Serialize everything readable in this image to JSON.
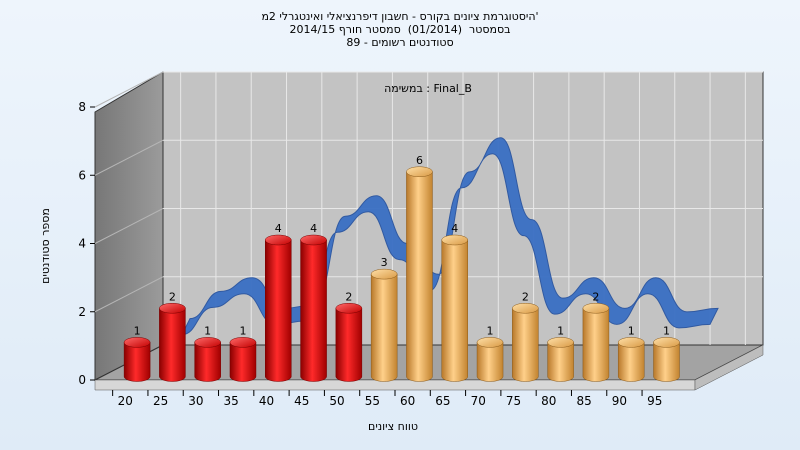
{
  "chart_data": {
    "type": "bar",
    "title_lines": [
      "היסטוגרמת ציונים בקורס - חשבון דיפרנציאלי ואינטגרלי 2מ'",
      "בסמסטר  (01/2014)  סמסטר חורף 2014/15",
      "סטודנטים רשומים - 89"
    ],
    "annotation": "במשימה : Final_B",
    "xlabel": "טווח ציונים",
    "ylabel": "מספר סטודנטים",
    "categories": [
      "20",
      "25",
      "30",
      "35",
      "40",
      "45",
      "50",
      "55",
      "60",
      "65",
      "70",
      "75",
      "80",
      "85",
      "90",
      "95"
    ],
    "values": [
      1,
      2,
      1,
      1,
      4,
      4,
      2,
      3,
      6,
      4,
      1,
      2,
      1,
      2,
      1,
      1
    ],
    "yticks": [
      "0",
      "2",
      "4",
      "6",
      "8"
    ],
    "ylim": [
      0,
      8
    ],
    "colors": {
      "fail_bar": "#dd1111",
      "pass_bar": "#e9a84a",
      "curve": "#3a6fc4",
      "back_wall": "#c0c0c0",
      "side_wall": "#8a8a8a",
      "floor": "#9a9a9a"
    },
    "fail_threshold_index": 6,
    "curve_values": [
      1.3,
      2.1,
      2.5,
      1.6,
      1.7,
      4.3,
      4.9,
      3.5,
      2.6,
      5.6,
      6.6,
      4.2,
      1.9,
      2.5,
      1.6,
      2.5,
      1.5,
      1.6
    ]
  }
}
